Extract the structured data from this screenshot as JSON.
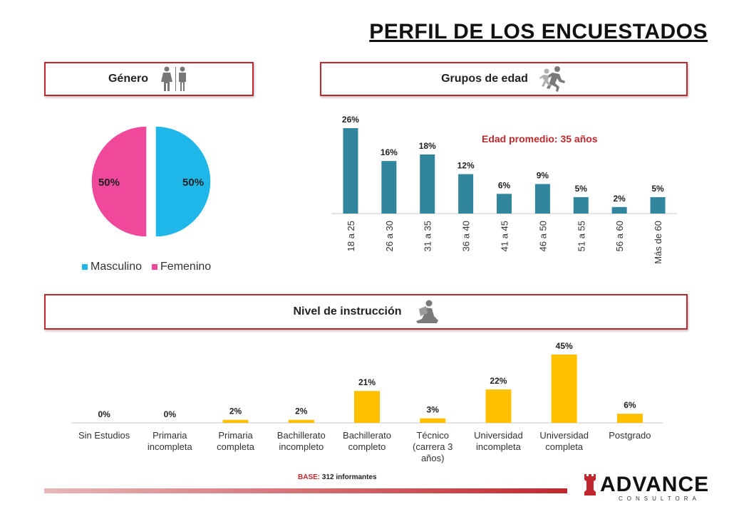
{
  "page": {
    "title": "PERFIL DE LOS ENCUESTADOS",
    "avg_age_note": "Edad promedio: 35 años",
    "base_key": "BASE:",
    "base_value": "312 informantes",
    "logo": {
      "word": "ADVANCE",
      "sub": "CONSULTORA"
    }
  },
  "panels": {
    "gender": {
      "label": "Género",
      "icon": "man-woman-icon"
    },
    "age": {
      "label": "Grupos de edad",
      "icon": "running-people-icon"
    },
    "education": {
      "label": "Nivel de instrucción",
      "icon": "reading-person-icon"
    }
  },
  "colors": {
    "accent_red": "#c0282d",
    "masculino": "#1fb7ea",
    "femenino": "#f0489b",
    "age_bar": "#31859c",
    "edu_bar": "#ffc000"
  },
  "chart_data": [
    {
      "type": "pie",
      "categories": [
        "Masculino",
        "Femenino"
      ],
      "values": [
        50,
        50
      ],
      "labels": [
        "50%",
        "50%"
      ],
      "legend": "bottom"
    },
    {
      "type": "bar",
      "categories": [
        "18 a 25",
        "26 a 30",
        "31 a 35",
        "36 a 40",
        "41 a 45",
        "46 a 50",
        "51 a 55",
        "56 a 60",
        "Más de 60"
      ],
      "values": [
        26,
        16,
        18,
        12,
        6,
        9,
        5,
        2,
        5
      ],
      "labels": [
        "26%",
        "16%",
        "18%",
        "12%",
        "6%",
        "9%",
        "5%",
        "2%",
        "5%"
      ],
      "annotation": "Edad promedio: 35 años",
      "grid": false
    },
    {
      "type": "bar",
      "categories": [
        "Sin Estudios",
        "Primaria incompleta",
        "Primaria completa",
        "Bachillerato incompleto",
        "Bachillerato completo",
        "Técnico (carrera 3 años)",
        "Universidad incompleta",
        "Universidad completa",
        "Postgrado"
      ],
      "values": [
        0,
        0,
        2,
        2,
        21,
        3,
        22,
        45,
        6
      ],
      "labels": [
        "0%",
        "0%",
        "2%",
        "2%",
        "21%",
        "3%",
        "22%",
        "45%",
        "6%"
      ],
      "grid": false
    }
  ]
}
